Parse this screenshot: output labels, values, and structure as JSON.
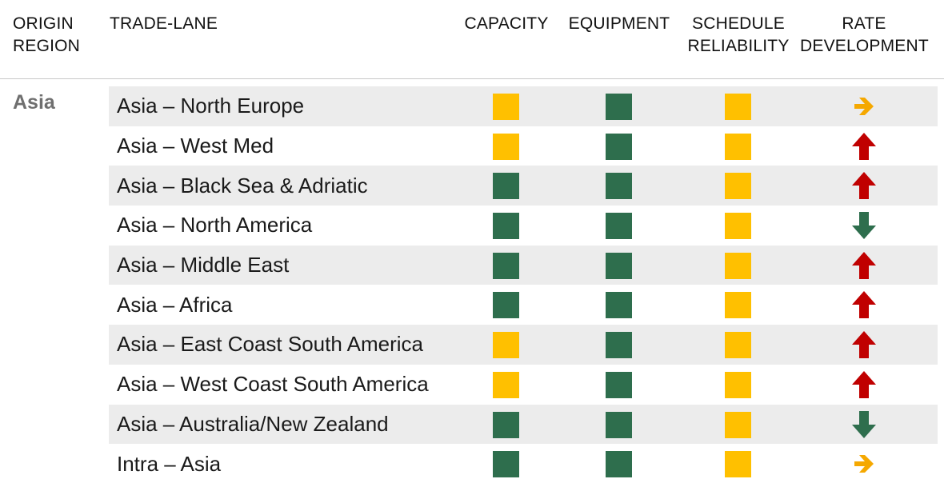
{
  "header": {
    "origin_region": [
      "ORIGIN",
      "REGION"
    ],
    "trade_lane": "TRADE-LANE",
    "capacity": "CAPACITY",
    "equipment": "EQUIPMENT",
    "schedule_reliability": [
      "SCHEDULE",
      "RELIABILITY"
    ],
    "rate_development": [
      "RATE",
      "DEVELOPMENT"
    ]
  },
  "region": "Asia",
  "colors": {
    "green": "#2e6e4d",
    "yellow": "#ffc000",
    "red": "#c00000",
    "arrow_green": "#2e6e4d",
    "arrow_orange": "#f5a800"
  },
  "rows": [
    {
      "lane": "Asia – North Europe",
      "capacity": "yellow",
      "equipment": "green",
      "schedule": "yellow",
      "rate": "right",
      "rate_icon": "arrow-right-icon"
    },
    {
      "lane": "Asia – West Med",
      "capacity": "yellow",
      "equipment": "green",
      "schedule": "yellow",
      "rate": "up",
      "rate_icon": "arrow-up-icon"
    },
    {
      "lane": "Asia – Black Sea & Adriatic",
      "capacity": "green",
      "equipment": "green",
      "schedule": "yellow",
      "rate": "up",
      "rate_icon": "arrow-up-icon"
    },
    {
      "lane": "Asia – North America",
      "capacity": "green",
      "equipment": "green",
      "schedule": "yellow",
      "rate": "down",
      "rate_icon": "arrow-down-icon"
    },
    {
      "lane": "Asia – Middle East",
      "capacity": "green",
      "equipment": "green",
      "schedule": "yellow",
      "rate": "up",
      "rate_icon": "arrow-up-icon"
    },
    {
      "lane": "Asia – Africa",
      "capacity": "green",
      "equipment": "green",
      "schedule": "yellow",
      "rate": "up",
      "rate_icon": "arrow-up-icon"
    },
    {
      "lane": "Asia – East Coast South America",
      "capacity": "yellow",
      "equipment": "green",
      "schedule": "yellow",
      "rate": "up",
      "rate_icon": "arrow-up-icon"
    },
    {
      "lane": "Asia – West Coast South America",
      "capacity": "yellow",
      "equipment": "green",
      "schedule": "yellow",
      "rate": "up",
      "rate_icon": "arrow-up-icon"
    },
    {
      "lane": "Asia – Australia/New Zealand",
      "capacity": "green",
      "equipment": "green",
      "schedule": "yellow",
      "rate": "down",
      "rate_icon": "arrow-down-icon"
    },
    {
      "lane": "Intra – Asia",
      "capacity": "green",
      "equipment": "green",
      "schedule": "yellow",
      "rate": "right",
      "rate_icon": "arrow-right-icon"
    }
  ]
}
